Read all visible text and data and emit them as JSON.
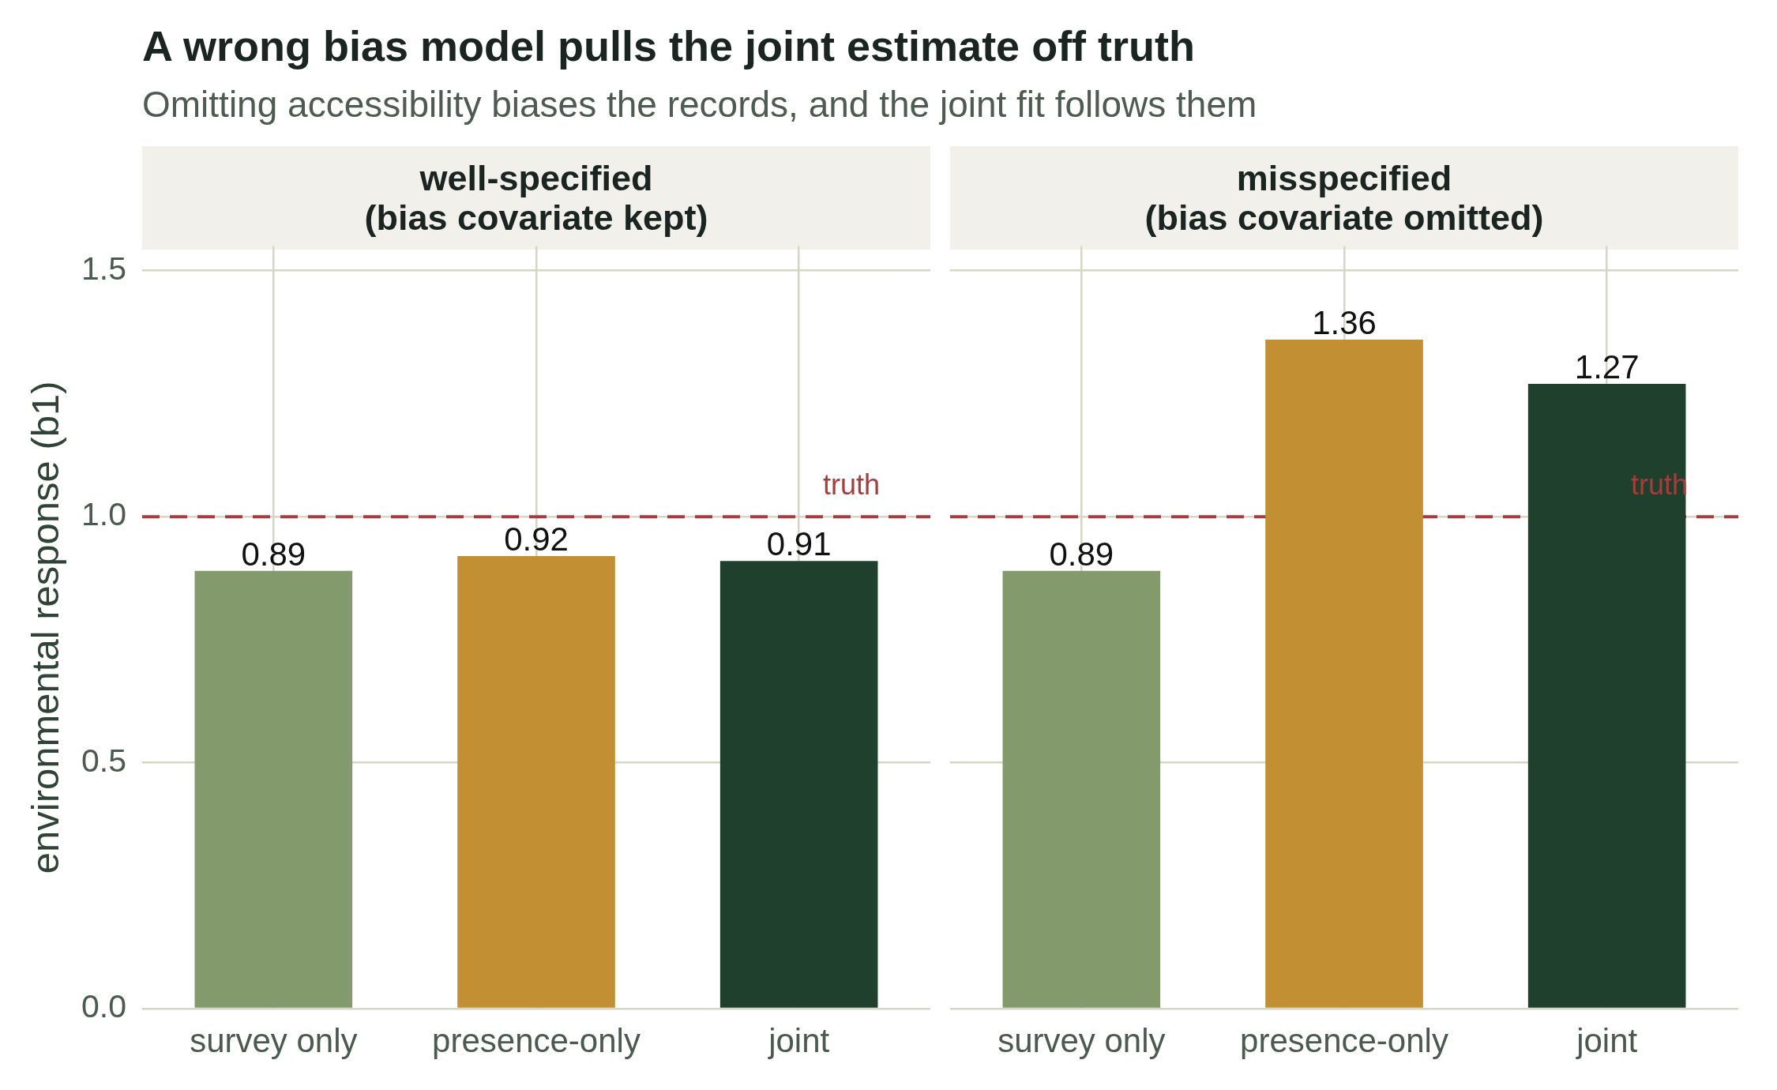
{
  "chart_data": [
    {
      "type": "bar",
      "title": "A wrong bias model pulls the joint estimate off truth",
      "subtitle": "Omitting accessibility biases the records, and the joint fit follows them",
      "annotations": [
        "well-specified\n(bias covariate kept)"
      ],
      "ylabel": "environmental response (b1)",
      "categories": [
        "survey only",
        "presence-only",
        "joint"
      ],
      "values": [
        0.89,
        0.92,
        0.91
      ],
      "colors": [
        "#829a6c",
        "#c29032",
        "#1f402c"
      ],
      "ylim": [
        0,
        1.55
      ],
      "yticks": [
        {
          "value": 0,
          "label": "0.0"
        },
        0.5,
        {
          "value": 1,
          "label": "1.0"
        },
        1.5
      ],
      "ref_lines": [
        {
          "axis": "y",
          "value": 1,
          "label": "truth",
          "color": "#a83c3c",
          "line_style": "dashed"
        }
      ],
      "data_labels": true,
      "grid": true
    },
    {
      "type": "bar",
      "annotations": [
        "misspecified\n(bias covariate omitted)"
      ],
      "categories": [
        "survey only",
        "presence-only",
        "joint"
      ],
      "values": [
        0.89,
        1.36,
        1.27
      ],
      "colors": [
        "#829a6c",
        "#c29032",
        "#1f402c"
      ],
      "ylim": [
        0,
        1.55
      ],
      "yticks": [
        0,
        0.5,
        1,
        1.5
      ],
      "tick_labels": "x",
      "ref_lines": [
        {
          "axis": "y",
          "value": 1,
          "label": "truth",
          "color": "#a83c3c",
          "line_style": "dashed"
        }
      ],
      "data_labels": true,
      "grid": true
    }
  ]
}
